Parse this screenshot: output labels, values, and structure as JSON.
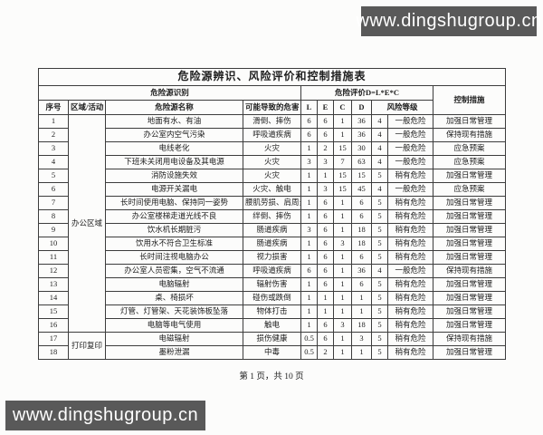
{
  "watermark": {
    "text": "www.dingshugroup.cn",
    "bg_color": "#595959",
    "text_color": "#ffffff"
  },
  "table": {
    "title": "危险源辨识、风险评价和控制措施表",
    "header": {
      "group_identify": "危险源识别",
      "group_evaluate": "危险评价D=L*E*C",
      "control": "控制措施",
      "col_no": "序号",
      "col_region": "区域/活动",
      "col_name": "危险源名称",
      "col_harm": "可能导致的危害",
      "col_l": "L",
      "col_e": "E",
      "col_c": "C",
      "col_d": "D",
      "col_level": "风险等级"
    },
    "regions": [
      {
        "label": "办公区域",
        "start": 1,
        "rowspan": 16
      },
      {
        "label": "打印复印",
        "start": 17,
        "rowspan": 2
      }
    ],
    "rows": [
      {
        "no": "1",
        "name": "地面有水、有油",
        "harm": "滑倒、摔伤",
        "L": "6",
        "E": "6",
        "C": "1",
        "D": "36",
        "grade": "4",
        "level": "一般危险",
        "measure": "加强日常管理"
      },
      {
        "no": "2",
        "name": "办公室内空气污染",
        "harm": "呼吸道疾病",
        "L": "6",
        "E": "6",
        "C": "1",
        "D": "36",
        "grade": "4",
        "level": "一般危险",
        "measure": "保持现有措施"
      },
      {
        "no": "3",
        "name": "电线老化",
        "harm": "火灾",
        "L": "1",
        "E": "2",
        "C": "15",
        "D": "30",
        "grade": "4",
        "level": "一般危险",
        "measure": "应急预案"
      },
      {
        "no": "4",
        "name": "下班未关闭用电设备及其电源",
        "harm": "火灾",
        "L": "3",
        "E": "3",
        "C": "7",
        "D": "63",
        "grade": "4",
        "level": "一般危险",
        "measure": "应急预案"
      },
      {
        "no": "5",
        "name": "消防设施失效",
        "harm": "火灾",
        "L": "1",
        "E": "1",
        "C": "15",
        "D": "15",
        "grade": "5",
        "level": "稍有危险",
        "measure": "加强日常管理"
      },
      {
        "no": "6",
        "name": "电源开关漏电",
        "harm": "火灾、触电",
        "L": "1",
        "E": "3",
        "C": "15",
        "D": "45",
        "grade": "4",
        "level": "一般危险",
        "measure": "应急预案"
      },
      {
        "no": "7",
        "name": "长时间使用电脑、保持同一姿势",
        "harm": "腰肌劳损、肩周炎",
        "L": "1",
        "E": "6",
        "C": "1",
        "D": "6",
        "grade": "5",
        "level": "稍有危险",
        "measure": "加强日常管理"
      },
      {
        "no": "8",
        "name": "办公室楼梯走道光线不良",
        "harm": "绊倒、摔伤",
        "L": "1",
        "E": "6",
        "C": "1",
        "D": "6",
        "grade": "5",
        "level": "稍有危险",
        "measure": "加强日常管理"
      },
      {
        "no": "9",
        "name": "饮水机长期脏污",
        "harm": "肠道疾病",
        "L": "3",
        "E": "6",
        "C": "1",
        "D": "18",
        "grade": "5",
        "level": "稍有危险",
        "measure": "加强日常管理"
      },
      {
        "no": "10",
        "name": "饮用水不符合卫生标准",
        "harm": "肠道疾病",
        "L": "1",
        "E": "6",
        "C": "3",
        "D": "18",
        "grade": "5",
        "level": "稍有危险",
        "measure": "加强日常管理"
      },
      {
        "no": "11",
        "name": "长时间注视电脑办公",
        "harm": "视力损害",
        "L": "1",
        "E": "6",
        "C": "1",
        "D": "6",
        "grade": "5",
        "level": "稍有危险",
        "measure": "加强日常管理"
      },
      {
        "no": "12",
        "name": "办公室人员密集，空气不流通",
        "harm": "呼吸道疾病",
        "L": "6",
        "E": "6",
        "C": "1",
        "D": "36",
        "grade": "4",
        "level": "一般危险",
        "measure": "保持现有措施"
      },
      {
        "no": "13",
        "name": "电脑辐射",
        "harm": "辐射伤害",
        "L": "1",
        "E": "6",
        "C": "1",
        "D": "6",
        "grade": "5",
        "level": "稍有危险",
        "measure": "加强日常管理"
      },
      {
        "no": "14",
        "name": "桌、椅损坏",
        "harm": "碰伤或跌倒",
        "L": "1",
        "E": "1",
        "C": "1",
        "D": "1",
        "grade": "5",
        "level": "稍有危险",
        "measure": "加强日常管理"
      },
      {
        "no": "15",
        "name": "灯管、灯管架、天花装饰板坠落",
        "harm": "物体打击",
        "L": "1",
        "E": "1",
        "C": "1",
        "D": "1",
        "grade": "5",
        "level": "稍有危险",
        "measure": "加强日常管理"
      },
      {
        "no": "16",
        "name": "电脑等电气使用",
        "harm": "触电",
        "L": "1",
        "E": "6",
        "C": "3",
        "D": "18",
        "grade": "5",
        "level": "稍有危险",
        "measure": "加强日常管理"
      },
      {
        "no": "17",
        "name": "电磁辐射",
        "harm": "损伤健康",
        "L": "0.5",
        "E": "6",
        "C": "1",
        "D": "3",
        "grade": "5",
        "level": "稍有危险",
        "measure": "保持现有措施"
      },
      {
        "no": "18",
        "name": "墨粉泄漏",
        "harm": "中毒",
        "L": "0.5",
        "E": "2",
        "C": "1",
        "D": "1",
        "grade": "5",
        "level": "稍有危险",
        "measure": "加强日常管理"
      }
    ]
  },
  "footer": {
    "page_text": "第 1 页，共 10 页"
  }
}
